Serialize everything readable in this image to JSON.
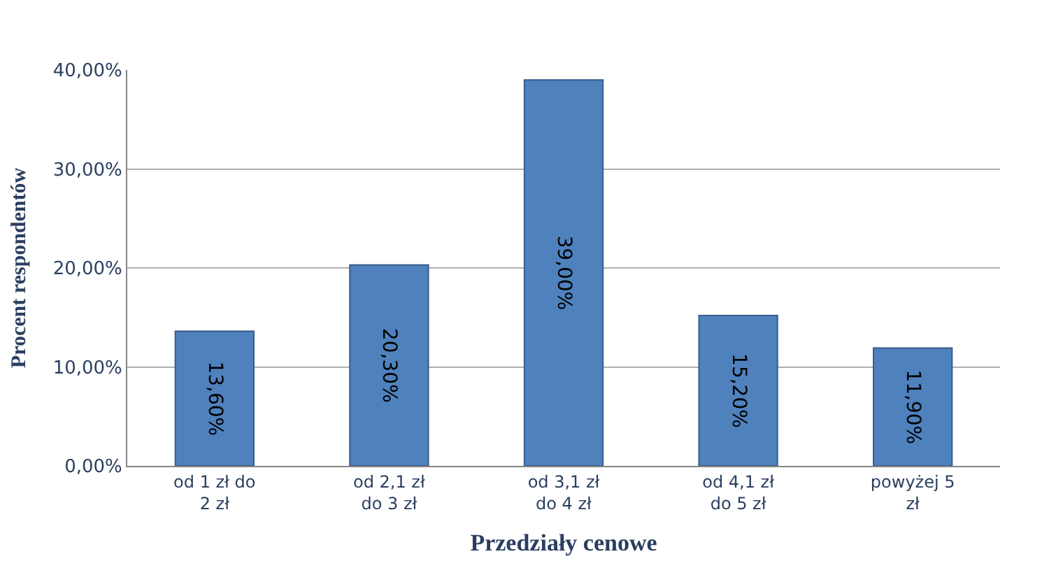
{
  "chart_data": {
    "type": "bar",
    "xlabel": "Przedziały cenowe",
    "ylabel": "Procent respondentów",
    "categories": [
      "od 1 zł do 2 zł",
      "od 2,1 zł do 3 zł",
      "od 3,1 zł do 4 zł",
      "od 4,1 zł do 5 zł",
      "powyżej 5 zł"
    ],
    "values": [
      13.6,
      20.3,
      39.0,
      15.2,
      11.9
    ],
    "value_labels": [
      "13,60%",
      "20,30%",
      "39,00%",
      "15,20%",
      "11,90%"
    ],
    "color": "#4f81bd",
    "ylim": [
      0,
      40
    ],
    "yticks": [
      {
        "value": 0,
        "label": "0,00%"
      },
      {
        "value": 10,
        "label": "10,00%"
      },
      {
        "value": 20,
        "label": "20,00%"
      },
      {
        "value": 30,
        "label": "30,00%"
      },
      {
        "value": 40,
        "label": "40,00%"
      }
    ],
    "grid": "y",
    "legend": false
  }
}
